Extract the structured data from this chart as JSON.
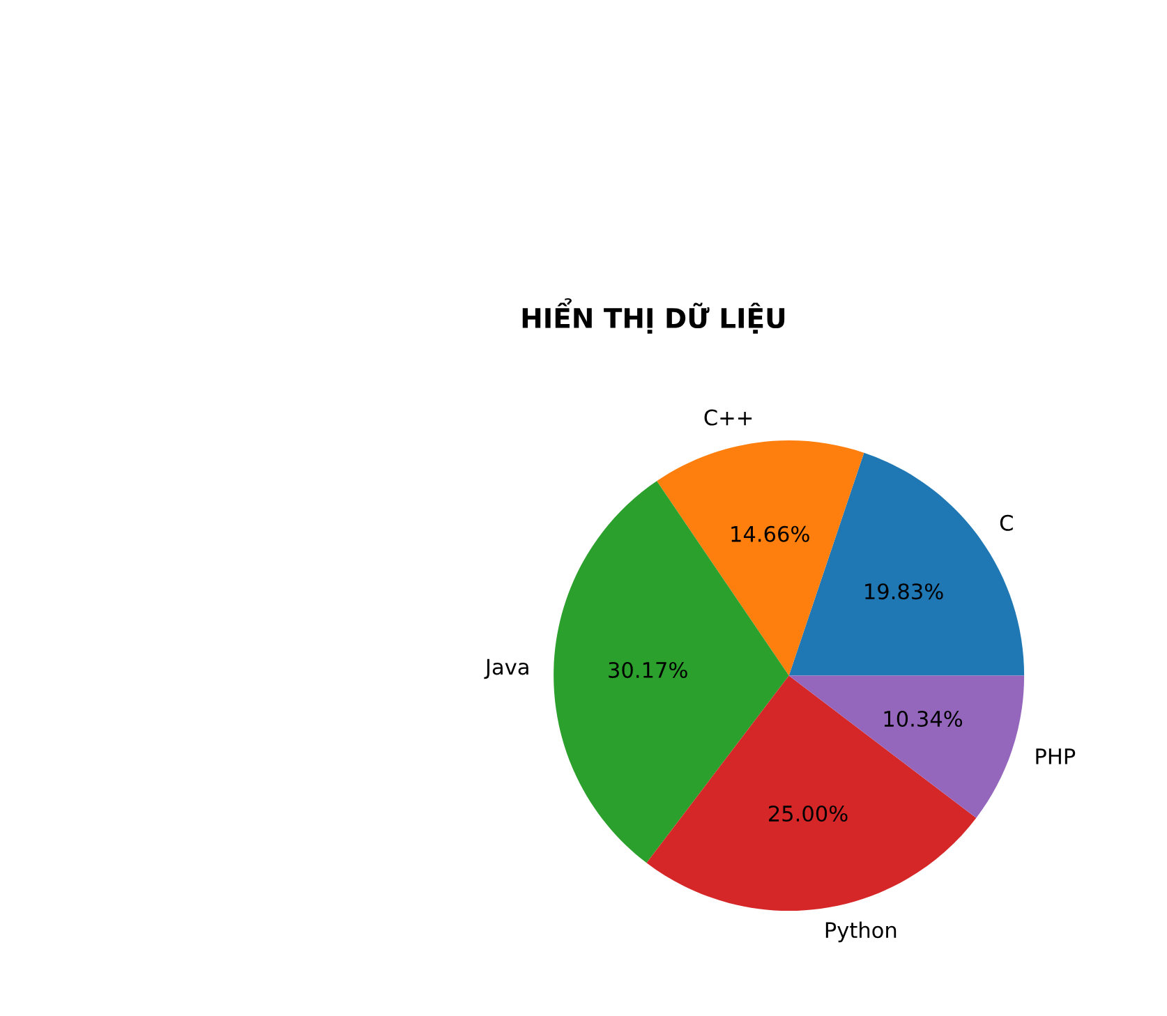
{
  "chart_data": {
    "type": "pie",
    "title": "HIỂN THỊ DỮ LIỆU",
    "categories": [
      "C",
      "C++",
      "Java",
      "Python",
      "PHP"
    ],
    "values": [
      19.83,
      14.66,
      30.17,
      25.0,
      10.34
    ],
    "value_labels": [
      "19.83%",
      "14.66%",
      "30.17%",
      "25.00%",
      "10.34%"
    ],
    "colors": [
      "#1f77b4",
      "#ff7f0e",
      "#2ca02c",
      "#d62728",
      "#9467bd"
    ],
    "legend": false
  }
}
